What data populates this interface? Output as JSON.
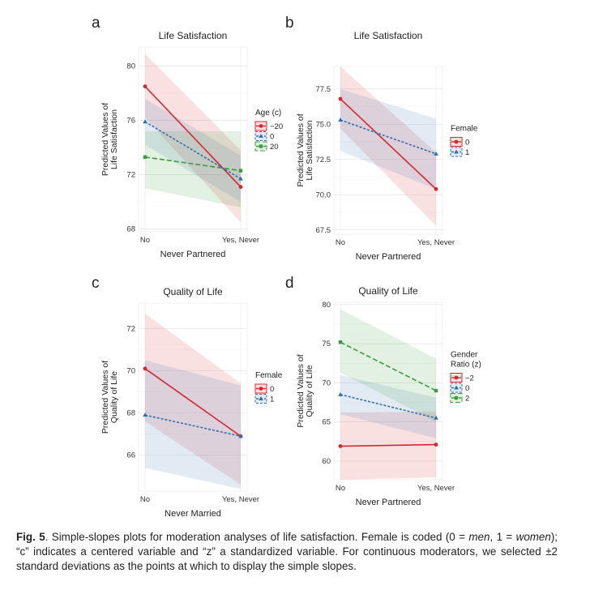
{
  "caption": {
    "fig_label": "Fig. 5",
    "text_a": ". Simple-slopes plots for moderation analyses of life satisfaction. Female is coded (0 = ",
    "men": "men",
    "text_b": ", 1 = ",
    "women": "women",
    "text_c": "); “c” indicates a centered variable and “z” a standardized variable. For continuous moderators, we selected ±2 standard deviations as the points at which to display the simple slopes."
  },
  "chart_data": [
    {
      "panel": "a",
      "type": "line",
      "title": "Life Satisfaction",
      "xlabel": "Never Partnered",
      "ylabel": [
        "Predicted Values of",
        "Life Satisfaction"
      ],
      "categories": [
        "No",
        "Yes, Never"
      ],
      "ylim": [
        67.8,
        81.4
      ],
      "yticks": [
        "68",
        "72",
        "76",
        "80"
      ],
      "legend": {
        "title": "Age (c)",
        "placement": "right"
      },
      "series": [
        {
          "name": "−20",
          "values": [
            78.5,
            71.1
          ],
          "ci_low": [
            76.2,
            68.5
          ],
          "ci_high": [
            80.9,
            73.8
          ],
          "color": "#d6272f",
          "dash": "none",
          "marker": "circle"
        },
        {
          "name": "0",
          "values": [
            75.9,
            71.7
          ],
          "ci_low": [
            74.2,
            70.0
          ],
          "ci_high": [
            77.6,
            73.4
          ],
          "color": "#2f6fb0",
          "dash": "3,2",
          "marker": "triangle"
        },
        {
          "name": "20",
          "values": [
            73.3,
            72.3
          ],
          "ci_low": [
            71.0,
            69.6
          ],
          "ci_high": [
            75.2,
            75.2
          ],
          "color": "#3a9b3a",
          "dash": "6,3",
          "marker": "square"
        }
      ]
    },
    {
      "panel": "b",
      "type": "line",
      "title": "Life Satisfaction",
      "xlabel": "Never Partnered",
      "ylabel": [
        "Predicted Values of",
        "Life Satisfaction"
      ],
      "categories": [
        "No",
        "Yes, Never"
      ],
      "ylim": [
        67.2,
        79.1
      ],
      "yticks": [
        "67.5",
        "70.0",
        "72.5",
        "75.0",
        "77.5"
      ],
      "legend": {
        "title": "Female",
        "placement": "right"
      },
      "series": [
        {
          "name": "0",
          "values": [
            76.8,
            70.4
          ],
          "ci_low": [
            74.7,
            67.8
          ],
          "ci_high": [
            79.1,
            73.0
          ],
          "color": "#d6272f",
          "dash": "none",
          "marker": "circle"
        },
        {
          "name": "1",
          "values": [
            75.3,
            72.9
          ],
          "ci_low": [
            73.1,
            70.4
          ],
          "ci_high": [
            77.5,
            75.4
          ],
          "color": "#2f6fb0",
          "dash": "3,2",
          "marker": "triangle"
        }
      ]
    },
    {
      "panel": "c",
      "type": "line",
      "title": "Quality of Life",
      "xlabel": "Never Married",
      "ylabel": [
        "Predicted Values of",
        "Quality of Life"
      ],
      "categories": [
        "No",
        "Yes, Never"
      ],
      "ylim": [
        64.3,
        73.2
      ],
      "yticks": [
        "66",
        "68",
        "70",
        "72"
      ],
      "legend": {
        "title": "Female",
        "placement": "right"
      },
      "series": [
        {
          "name": "0",
          "values": [
            70.1,
            66.9
          ],
          "ci_low": [
            67.6,
            64.6
          ],
          "ci_high": [
            72.7,
            69.4
          ],
          "color": "#d6272f",
          "dash": "none",
          "marker": "circle"
        },
        {
          "name": "1",
          "values": [
            67.9,
            66.9
          ],
          "ci_low": [
            65.4,
            64.4
          ],
          "ci_high": [
            70.5,
            69.3
          ],
          "color": "#2f6fb0",
          "dash": "3,2",
          "marker": "triangle"
        }
      ]
    },
    {
      "panel": "d",
      "type": "line",
      "title": "Quality of Life",
      "xlabel": "Never Partnered",
      "ylabel": [
        "Predicted Values of",
        "Quality of Life"
      ],
      "categories": [
        "No",
        "Yes, Never"
      ],
      "ylim": [
        57.6,
        80.3
      ],
      "yticks": [
        "60",
        "65",
        "70",
        "75",
        "80"
      ],
      "legend": {
        "title": "Gender Ratio (z)",
        "placement": "right"
      },
      "series": [
        {
          "name": "−2",
          "values": [
            61.9,
            62.1
          ],
          "ci_low": [
            57.6,
            57.9
          ],
          "ci_high": [
            66.2,
            66.3
          ],
          "color": "#d6272f",
          "dash": "none",
          "marker": "circle"
        },
        {
          "name": "0",
          "values": [
            68.5,
            65.5
          ],
          "ci_low": [
            66.0,
            62.9
          ],
          "ci_high": [
            71.0,
            68.1
          ],
          "color": "#2f6fb0",
          "dash": "3,2",
          "marker": "triangle"
        },
        {
          "name": "2",
          "values": [
            75.2,
            69.0
          ],
          "ci_low": [
            71.3,
            65.0
          ],
          "ci_high": [
            79.4,
            73.1
          ],
          "color": "#3a9b3a",
          "dash": "6,3",
          "marker": "square"
        }
      ]
    }
  ]
}
